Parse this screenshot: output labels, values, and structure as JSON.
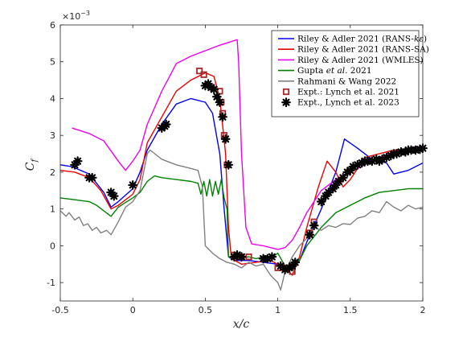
{
  "chart_data": {
    "type": "line",
    "xlabel": "x/c",
    "ylabel": "C_f",
    "y_multiplier": "×10",
    "y_multiplier_exp": "−3",
    "xlim": [
      -0.5,
      2
    ],
    "ylim": [
      -1.5,
      6
    ],
    "x_ticks": [
      -0.5,
      0,
      0.5,
      1,
      1.5,
      2
    ],
    "x_tick_labels": [
      "-0.5",
      "0",
      "0.5",
      "1",
      "1.5",
      "2"
    ],
    "y_ticks": [
      -1,
      0,
      1,
      2,
      3,
      4,
      5,
      6
    ],
    "y_tick_labels": [
      "-1",
      "0",
      "1",
      "2",
      "3",
      "4",
      "5",
      "6"
    ],
    "grid": false,
    "legend_position": "top-right",
    "series": [
      {
        "name": "Riley & Adler 2021 (RANS-kε)",
        "name_parts": [
          {
            "text": "Riley & Adler 2021 (RANS-",
            "italic": false
          },
          {
            "text": "kε",
            "italic": true
          },
          {
            "text": ")",
            "italic": false
          }
        ],
        "color": "#0000ee",
        "kind": "line",
        "points": [
          [
            -0.5,
            2.2
          ],
          [
            -0.42,
            2.15
          ],
          [
            -0.3,
            1.95
          ],
          [
            -0.25,
            1.7
          ],
          [
            -0.2,
            1.45
          ],
          [
            -0.15,
            1.05
          ],
          [
            -0.1,
            1.2
          ],
          [
            0,
            1.55
          ],
          [
            0.05,
            2.0
          ],
          [
            0.1,
            2.6
          ],
          [
            0.2,
            3.3
          ],
          [
            0.3,
            3.85
          ],
          [
            0.4,
            4.0
          ],
          [
            0.5,
            3.9
          ],
          [
            0.55,
            3.6
          ],
          [
            0.6,
            2.5
          ],
          [
            0.63,
            1.0
          ],
          [
            0.66,
            -0.3
          ],
          [
            0.7,
            -0.4
          ],
          [
            0.8,
            -0.4
          ],
          [
            0.9,
            -0.45
          ],
          [
            1.0,
            -0.5
          ],
          [
            1.1,
            -0.65
          ],
          [
            1.15,
            -0.4
          ],
          [
            1.2,
            0.1
          ],
          [
            1.3,
            1.0
          ],
          [
            1.4,
            2.0
          ],
          [
            1.46,
            2.9
          ],
          [
            1.55,
            2.65
          ],
          [
            1.65,
            2.35
          ],
          [
            1.75,
            2.25
          ],
          [
            1.8,
            1.95
          ],
          [
            1.9,
            2.05
          ],
          [
            2.0,
            2.25
          ]
        ]
      },
      {
        "name": "Riley & Adler 2021 (RANS-SA)",
        "color": "#ee0000",
        "kind": "line",
        "points": [
          [
            -0.5,
            2.05
          ],
          [
            -0.4,
            2.0
          ],
          [
            -0.3,
            1.85
          ],
          [
            -0.22,
            1.5
          ],
          [
            -0.15,
            1.0
          ],
          [
            -0.1,
            1.1
          ],
          [
            0,
            1.4
          ],
          [
            0.05,
            1.8
          ],
          [
            0.1,
            2.8
          ],
          [
            0.2,
            3.5
          ],
          [
            0.3,
            4.2
          ],
          [
            0.4,
            4.5
          ],
          [
            0.5,
            4.7
          ],
          [
            0.56,
            4.6
          ],
          [
            0.6,
            4.0
          ],
          [
            0.64,
            2.5
          ],
          [
            0.66,
            0.5
          ],
          [
            0.68,
            -0.35
          ],
          [
            0.75,
            -0.5
          ],
          [
            0.85,
            -0.45
          ],
          [
            0.95,
            -0.4
          ],
          [
            1.05,
            -0.6
          ],
          [
            1.1,
            -0.8
          ],
          [
            1.15,
            -0.3
          ],
          [
            1.2,
            0.5
          ],
          [
            1.28,
            1.6
          ],
          [
            1.34,
            2.3
          ],
          [
            1.4,
            2.0
          ],
          [
            1.45,
            1.6
          ],
          [
            1.5,
            1.8
          ],
          [
            1.6,
            2.4
          ],
          [
            1.7,
            2.5
          ],
          [
            1.8,
            2.6
          ],
          [
            1.9,
            2.62
          ],
          [
            2.0,
            2.65
          ]
        ]
      },
      {
        "name": "Riley & Adler 2021 (WMLES)",
        "color": "#ee00ee",
        "kind": "line",
        "points": [
          [
            -0.42,
            3.2
          ],
          [
            -0.3,
            3.05
          ],
          [
            -0.2,
            2.85
          ],
          [
            -0.1,
            2.3
          ],
          [
            -0.05,
            2.05
          ],
          [
            0,
            2.3
          ],
          [
            0.05,
            2.6
          ],
          [
            0.1,
            3.3
          ],
          [
            0.2,
            4.2
          ],
          [
            0.3,
            4.95
          ],
          [
            0.4,
            5.15
          ],
          [
            0.5,
            5.3
          ],
          [
            0.6,
            5.45
          ],
          [
            0.72,
            5.6
          ],
          [
            0.73,
            5.0
          ],
          [
            0.75,
            2.5
          ],
          [
            0.78,
            0.5
          ],
          [
            0.82,
            0.05
          ],
          [
            0.9,
            0.0
          ],
          [
            1.0,
            -0.1
          ],
          [
            1.05,
            -0.05
          ],
          [
            1.1,
            0.15
          ],
          [
            1.15,
            0.5
          ],
          [
            1.2,
            0.9
          ],
          [
            1.3,
            1.5
          ],
          [
            1.4,
            1.8
          ],
          [
            1.5,
            2.0
          ],
          [
            1.6,
            2.2
          ],
          [
            1.7,
            2.4
          ],
          [
            1.8,
            2.55
          ],
          [
            1.9,
            2.65
          ],
          [
            2.0,
            2.7
          ]
        ]
      },
      {
        "name": "Gupta et al. 2021",
        "name_parts": [
          {
            "text": "Gupta ",
            "italic": false
          },
          {
            "text": "et al.",
            "italic": true
          },
          {
            "text": " 2021",
            "italic": false
          }
        ],
        "color": "#008000",
        "kind": "line",
        "points": [
          [
            -0.5,
            1.3
          ],
          [
            -0.4,
            1.25
          ],
          [
            -0.3,
            1.2
          ],
          [
            -0.25,
            1.1
          ],
          [
            -0.15,
            0.8
          ],
          [
            -0.1,
            1.05
          ],
          [
            0,
            1.3
          ],
          [
            0.05,
            1.45
          ],
          [
            0.1,
            1.75
          ],
          [
            0.15,
            1.9
          ],
          [
            0.2,
            1.85
          ],
          [
            0.3,
            1.8
          ],
          [
            0.4,
            1.75
          ],
          [
            0.45,
            1.7
          ],
          [
            0.47,
            1.4
          ],
          [
            0.49,
            1.75
          ],
          [
            0.51,
            1.35
          ],
          [
            0.53,
            1.8
          ],
          [
            0.55,
            1.35
          ],
          [
            0.57,
            1.75
          ],
          [
            0.59,
            1.4
          ],
          [
            0.61,
            1.8
          ],
          [
            0.63,
            1.3
          ],
          [
            0.65,
            1.0
          ],
          [
            0.66,
            -0.3
          ],
          [
            0.7,
            -0.35
          ],
          [
            0.8,
            -0.3
          ],
          [
            0.85,
            -0.35
          ],
          [
            0.9,
            -0.3
          ],
          [
            0.95,
            -0.35
          ],
          [
            1.0,
            -0.2
          ],
          [
            1.05,
            -0.55
          ],
          [
            1.1,
            -0.6
          ],
          [
            1.15,
            -0.4
          ],
          [
            1.2,
            0.0
          ],
          [
            1.3,
            0.5
          ],
          [
            1.4,
            0.9
          ],
          [
            1.5,
            1.1
          ],
          [
            1.6,
            1.3
          ],
          [
            1.7,
            1.45
          ],
          [
            1.8,
            1.5
          ],
          [
            1.9,
            1.55
          ],
          [
            2.0,
            1.55
          ]
        ]
      },
      {
        "name": "Rahmani & Wang 2022",
        "color": "#808080",
        "kind": "line",
        "points": [
          [
            -0.5,
            0.95
          ],
          [
            -0.46,
            0.8
          ],
          [
            -0.44,
            0.9
          ],
          [
            -0.4,
            0.7
          ],
          [
            -0.37,
            0.78
          ],
          [
            -0.34,
            0.55
          ],
          [
            -0.31,
            0.6
          ],
          [
            -0.28,
            0.42
          ],
          [
            -0.25,
            0.5
          ],
          [
            -0.22,
            0.35
          ],
          [
            -0.18,
            0.42
          ],
          [
            -0.15,
            0.3
          ],
          [
            -0.1,
            0.65
          ],
          [
            -0.05,
            1.05
          ],
          [
            0,
            1.2
          ],
          [
            0.05,
            1.5
          ],
          [
            0.1,
            2.5
          ],
          [
            0.12,
            2.6
          ],
          [
            0.2,
            2.35
          ],
          [
            0.3,
            2.2
          ],
          [
            0.4,
            2.1
          ],
          [
            0.45,
            2.05
          ],
          [
            0.48,
            1.6
          ],
          [
            0.5,
            0.0
          ],
          [
            0.55,
            -0.2
          ],
          [
            0.6,
            -0.35
          ],
          [
            0.65,
            -0.45
          ],
          [
            0.7,
            -0.5
          ],
          [
            0.75,
            -0.6
          ],
          [
            0.8,
            -0.45
          ],
          [
            0.85,
            -0.55
          ],
          [
            0.9,
            -0.5
          ],
          [
            0.95,
            -0.8
          ],
          [
            1.0,
            -1.0
          ],
          [
            1.02,
            -1.2
          ],
          [
            1.05,
            -0.7
          ],
          [
            1.1,
            -0.3
          ],
          [
            1.15,
            0.0
          ],
          [
            1.2,
            0.2
          ],
          [
            1.25,
            0.5
          ],
          [
            1.3,
            0.42
          ],
          [
            1.35,
            0.55
          ],
          [
            1.4,
            0.5
          ],
          [
            1.45,
            0.6
          ],
          [
            1.5,
            0.58
          ],
          [
            1.55,
            0.75
          ],
          [
            1.6,
            0.8
          ],
          [
            1.65,
            0.95
          ],
          [
            1.7,
            0.9
          ],
          [
            1.75,
            1.2
          ],
          [
            1.8,
            1.05
          ],
          [
            1.85,
            0.95
          ],
          [
            1.9,
            1.1
          ],
          [
            1.95,
            1.0
          ],
          [
            2.0,
            1.05
          ]
        ]
      },
      {
        "name": "Expt.: Lynch et al. 2021",
        "color": "#a52a2a",
        "kind": "square",
        "points": [
          [
            0.46,
            4.75
          ],
          [
            0.49,
            4.65
          ],
          [
            0.6,
            4.2
          ],
          [
            0.61,
            3.9
          ],
          [
            0.62,
            3.6
          ],
          [
            0.63,
            3.0
          ],
          [
            0.65,
            2.2
          ],
          [
            0.7,
            -0.25
          ],
          [
            0.75,
            -0.3
          ],
          [
            0.8,
            -0.3
          ],
          [
            1.0,
            -0.6
          ],
          [
            1.05,
            -0.6
          ],
          [
            1.1,
            -0.7
          ],
          [
            1.22,
            0.35
          ],
          [
            1.25,
            0.65
          ]
        ]
      },
      {
        "name": "Expt., Lynch et al. 2023",
        "color": "#000000",
        "kind": "star",
        "points": [
          [
            -0.4,
            2.2
          ],
          [
            -0.38,
            2.3
          ],
          [
            -0.3,
            1.85
          ],
          [
            -0.28,
            1.85
          ],
          [
            -0.15,
            1.45
          ],
          [
            -0.13,
            1.35
          ],
          [
            0.0,
            1.65
          ],
          [
            0.2,
            3.2
          ],
          [
            0.22,
            3.25
          ],
          [
            0.23,
            3.3
          ],
          [
            0.5,
            4.35
          ],
          [
            0.52,
            4.4
          ],
          [
            0.54,
            4.3
          ],
          [
            0.56,
            4.25
          ],
          [
            0.58,
            4.05
          ],
          [
            0.6,
            3.9
          ],
          [
            0.62,
            3.5
          ],
          [
            0.64,
            2.9
          ],
          [
            0.66,
            2.2
          ],
          [
            0.7,
            -0.3
          ],
          [
            0.72,
            -0.25
          ],
          [
            0.75,
            -0.3
          ],
          [
            0.9,
            -0.35
          ],
          [
            0.93,
            -0.35
          ],
          [
            0.96,
            -0.3
          ],
          [
            1.02,
            -0.55
          ],
          [
            1.05,
            -0.65
          ],
          [
            1.08,
            -0.6
          ],
          [
            1.1,
            -0.55
          ],
          [
            1.12,
            -0.45
          ],
          [
            1.22,
            0.3
          ],
          [
            1.25,
            0.55
          ],
          [
            1.3,
            1.2
          ],
          [
            1.33,
            1.35
          ],
          [
            1.35,
            1.45
          ],
          [
            1.38,
            1.55
          ],
          [
            1.4,
            1.65
          ],
          [
            1.42,
            1.75
          ],
          [
            1.45,
            1.85
          ],
          [
            1.48,
            2.0
          ],
          [
            1.5,
            2.05
          ],
          [
            1.52,
            2.15
          ],
          [
            1.55,
            2.2
          ],
          [
            1.58,
            2.25
          ],
          [
            1.6,
            2.3
          ],
          [
            1.62,
            2.3
          ],
          [
            1.65,
            2.3
          ],
          [
            1.68,
            2.35
          ],
          [
            1.7,
            2.3
          ],
          [
            1.72,
            2.35
          ],
          [
            1.75,
            2.4
          ],
          [
            1.78,
            2.45
          ],
          [
            1.8,
            2.5
          ],
          [
            1.82,
            2.5
          ],
          [
            1.85,
            2.55
          ],
          [
            1.88,
            2.55
          ],
          [
            1.9,
            2.6
          ],
          [
            1.92,
            2.6
          ],
          [
            1.95,
            2.6
          ],
          [
            1.98,
            2.62
          ],
          [
            2.0,
            2.65
          ]
        ]
      }
    ]
  }
}
